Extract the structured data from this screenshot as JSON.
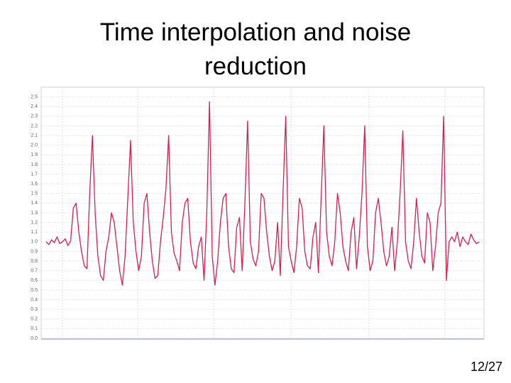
{
  "chart_data": {
    "type": "line",
    "title": "Time interpolation and noise reduction",
    "ylim": [
      0,
      2.6
    ],
    "yticks": [
      {
        "value": 0,
        "label": "0.0"
      },
      0.1,
      0.2,
      0.3,
      0.4,
      0.5,
      0.6,
      0.7,
      0.8,
      0.9,
      {
        "value": 1,
        "label": "1.0"
      },
      1.1,
      1.2,
      1.3,
      1.4,
      1.5,
      1.6,
      1.7,
      1.8,
      1.9,
      {
        "value": 2,
        "label": "2.0"
      },
      2.1,
      2.2,
      2.3,
      2.4,
      2.5
    ],
    "grid": true,
    "color": "#d81e4c",
    "values": [
      1.0,
      0.97,
      1.02,
      0.99,
      1.05,
      0.98,
      1.0,
      1.03,
      0.96,
      1.01,
      1.35,
      1.4,
      1.1,
      0.9,
      0.75,
      0.72,
      1.5,
      2.1,
      1.3,
      0.85,
      0.65,
      0.6,
      0.9,
      1.05,
      1.3,
      1.2,
      0.95,
      0.7,
      0.55,
      0.85,
      1.45,
      2.05,
      1.2,
      0.9,
      0.7,
      0.85,
      1.4,
      1.5,
      1.1,
      0.8,
      0.62,
      0.65,
      1.0,
      1.25,
      1.55,
      2.1,
      1.1,
      0.88,
      0.8,
      0.7,
      1.2,
      1.4,
      1.45,
      1.0,
      0.78,
      0.72,
      0.95,
      1.05,
      0.6,
      1.3,
      2.45,
      0.85,
      0.55,
      0.8,
      1.2,
      1.45,
      1.5,
      0.95,
      0.72,
      0.68,
      1.15,
      1.25,
      0.7,
      1.4,
      2.25,
      1.0,
      0.82,
      0.75,
      0.9,
      1.5,
      1.45,
      1.1,
      0.85,
      0.7,
      0.8,
      1.2,
      0.65,
      1.5,
      2.3,
      0.95,
      0.8,
      0.68,
      0.95,
      1.45,
      1.35,
      0.9,
      0.75,
      0.72,
      1.05,
      1.2,
      0.68,
      1.45,
      2.2,
      1.1,
      0.85,
      0.75,
      1.0,
      1.5,
      1.3,
      0.95,
      0.8,
      0.7,
      1.1,
      1.25,
      0.72,
      1.05,
      1.5,
      2.2,
      0.95,
      0.7,
      0.8,
      1.3,
      1.45,
      1.2,
      0.9,
      0.75,
      0.85,
      1.15,
      0.7,
      1.0,
      1.5,
      2.15,
      1.0,
      0.8,
      0.72,
      1.0,
      1.45,
      1.1,
      0.85,
      0.78,
      1.3,
      1.2,
      0.7,
      0.95,
      1.3,
      1.4,
      2.3,
      0.6,
      1.0,
      1.05,
      1.0,
      1.1,
      0.95,
      1.05,
      1.0,
      0.97,
      1.08,
      1.02,
      0.98,
      1.0
    ]
  },
  "page_number": "12/27"
}
